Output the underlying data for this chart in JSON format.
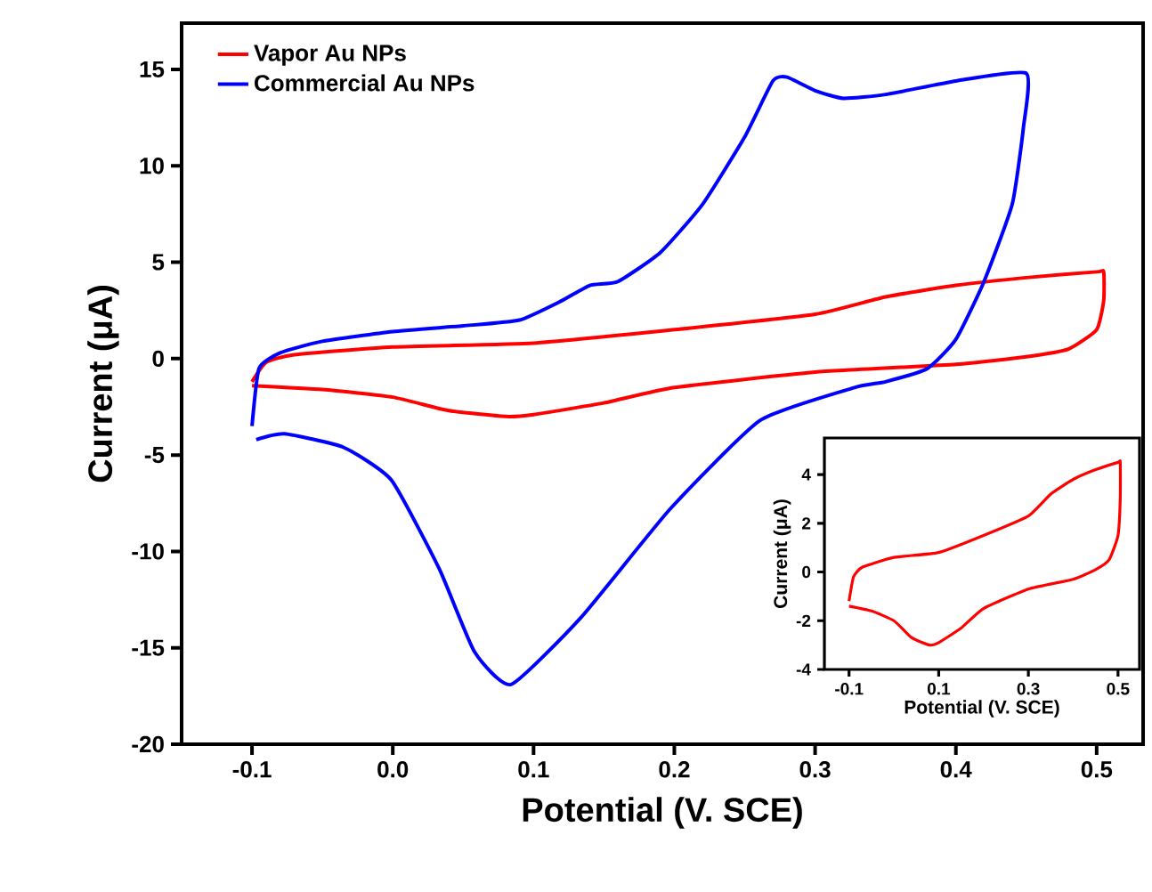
{
  "chart_data": [
    {
      "type": "line",
      "xlabel": "Potential (V. SCE)",
      "ylabel": "Current (μA)",
      "xlim": [
        -0.15,
        0.533
      ],
      "ylim": [
        -20,
        17.4
      ],
      "xticks": [
        -0.1,
        {
          "value": 0,
          "label": "0.0"
        },
        0.1,
        0.2,
        0.3,
        0.4,
        0.5
      ],
      "yticks": [
        -20,
        -15,
        -10,
        -5,
        0,
        5,
        10,
        15
      ],
      "legend": "top left",
      "grid": false,
      "series": [
        {
          "name": "Vapor Au NPs",
          "color": "#ff0000",
          "x": [
            -0.1,
            -0.09,
            -0.07,
            0,
            0.1,
            0.2,
            0.3,
            0.35,
            0.4,
            0.45,
            0.5,
            0.505,
            0.505,
            0.5,
            0.48,
            0.45,
            0.4,
            0.3,
            0.2,
            0.15,
            0.1,
            0.08,
            0.04,
            0,
            -0.05,
            -0.1
          ],
          "values": [
            -1.2,
            -0.2,
            0.2,
            0.6,
            0.8,
            1.5,
            2.3,
            3.2,
            3.8,
            4.2,
            4.5,
            4.5,
            3,
            1.5,
            0.5,
            0.1,
            -0.3,
            -0.7,
            -1.5,
            -2.3,
            -2.9,
            -3,
            -2.7,
            -2,
            -1.6,
            -1.4
          ]
        },
        {
          "name": "Commercial Au NPs",
          "color": "#0000ff",
          "x": [
            -0.1,
            -0.095,
            -0.08,
            -0.05,
            0,
            0.05,
            0.09,
            0.12,
            0.14,
            0.16,
            0.19,
            0.22,
            0.25,
            0.27,
            0.28,
            0.3,
            0.32,
            0.35,
            0.4,
            0.45,
            0.448,
            0.44,
            0.42,
            0.4,
            0.38,
            0.35,
            0.328,
            0.261,
            0.197,
            0.134,
            0.084,
            0.058,
            0.033,
            -0.001,
            -0.035,
            -0.077,
            -0.097
          ],
          "values": [
            -3.5,
            -0.5,
            0.3,
            0.9,
            1.4,
            1.7,
            2,
            3,
            3.8,
            4,
            5.5,
            8,
            11.5,
            14.4,
            14.6,
            13.9,
            13.5,
            13.7,
            14.4,
            14.8,
            12,
            8,
            4,
            1,
            -0.5,
            -1.2,
            -1.5,
            -3.2,
            -7.8,
            -13.4,
            -16.9,
            -15.2,
            -10.9,
            -6.3,
            -4.6,
            -3.9,
            -4.2
          ]
        }
      ]
    },
    {
      "type": "line",
      "xlabel": "Potential (V. SCE)",
      "ylabel": "Current (μA)",
      "xlim": [
        -0.155,
        0.548
      ],
      "ylim": [
        -4,
        5.5
      ],
      "xticks": [
        -0.1,
        0.1,
        0.3,
        0.5
      ],
      "yticks": [
        -4,
        -2,
        0,
        2,
        4
      ],
      "grid": false,
      "series": [
        {
          "color": "#ff0000",
          "x": [
            -0.1,
            -0.09,
            -0.07,
            0,
            0.1,
            0.2,
            0.3,
            0.35,
            0.4,
            0.45,
            0.5,
            0.505,
            0.505,
            0.5,
            0.48,
            0.45,
            0.4,
            0.3,
            0.2,
            0.15,
            0.1,
            0.08,
            0.04,
            0,
            -0.05,
            -0.1
          ],
          "values": [
            -1.2,
            -0.2,
            0.2,
            0.6,
            0.8,
            1.5,
            2.3,
            3.2,
            3.8,
            4.2,
            4.5,
            4.5,
            3,
            1.5,
            0.5,
            0.1,
            -0.3,
            -0.7,
            -1.5,
            -2.3,
            -2.9,
            -3,
            -2.7,
            -2,
            -1.6,
            -1.4
          ]
        }
      ]
    }
  ]
}
